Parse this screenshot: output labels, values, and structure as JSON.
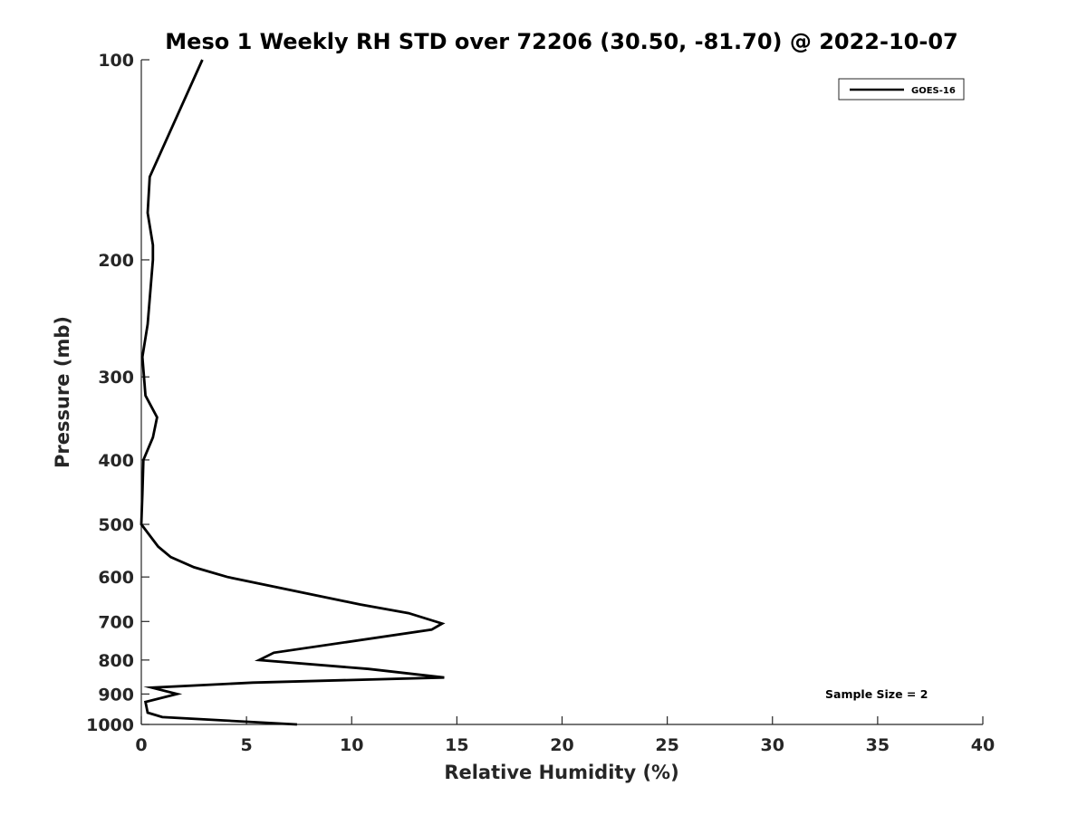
{
  "chart_data": {
    "type": "line",
    "title": "Meso 1 Weekly RH STD over 72206 (30.50, -81.70) @ 2022-10-07",
    "xlabel": "Relative Humidity (%)",
    "ylabel": "Pressure (mb)",
    "xlim": [
      0,
      40
    ],
    "ylim": [
      100,
      1000
    ],
    "y_scale": "log",
    "y_reversed": true,
    "grid": false,
    "legend_position": "top-right",
    "x_ticks": [
      "0",
      "5",
      "10",
      "15",
      "20",
      "25",
      "30",
      "35",
      "40"
    ],
    "y_ticks": [
      "100",
      "200",
      "300",
      "400",
      "500",
      "600",
      "700",
      "800",
      "900",
      "1000"
    ],
    "series": [
      {
        "name": "GOES-16",
        "color": "#000000",
        "points": [
          {
            "x": 2.9,
            "y": 100
          },
          {
            "x": 0.4,
            "y": 150
          },
          {
            "x": 0.3,
            "y": 170
          },
          {
            "x": 0.55,
            "y": 190
          },
          {
            "x": 0.55,
            "y": 200
          },
          {
            "x": 0.3,
            "y": 250
          },
          {
            "x": 0.05,
            "y": 280
          },
          {
            "x": 0.2,
            "y": 320
          },
          {
            "x": 0.75,
            "y": 345
          },
          {
            "x": 0.55,
            "y": 370
          },
          {
            "x": 0.1,
            "y": 400
          },
          {
            "x": 0.05,
            "y": 450
          },
          {
            "x": 0.0,
            "y": 500
          },
          {
            "x": 0.8,
            "y": 540
          },
          {
            "x": 1.4,
            "y": 560
          },
          {
            "x": 2.5,
            "y": 580
          },
          {
            "x": 4.1,
            "y": 600
          },
          {
            "x": 10.4,
            "y": 660
          },
          {
            "x": 12.7,
            "y": 680
          },
          {
            "x": 14.3,
            "y": 705
          },
          {
            "x": 13.8,
            "y": 720
          },
          {
            "x": 6.3,
            "y": 780
          },
          {
            "x": 5.6,
            "y": 800
          },
          {
            "x": 10.8,
            "y": 825
          },
          {
            "x": 14.4,
            "y": 850
          },
          {
            "x": 5.3,
            "y": 865
          },
          {
            "x": 0.5,
            "y": 880
          },
          {
            "x": 1.7,
            "y": 900
          },
          {
            "x": 0.2,
            "y": 925
          },
          {
            "x": 0.3,
            "y": 960
          },
          {
            "x": 1.0,
            "y": 975
          },
          {
            "x": 7.4,
            "y": 1000
          }
        ]
      }
    ],
    "annotation": "Sample Size = 2"
  }
}
